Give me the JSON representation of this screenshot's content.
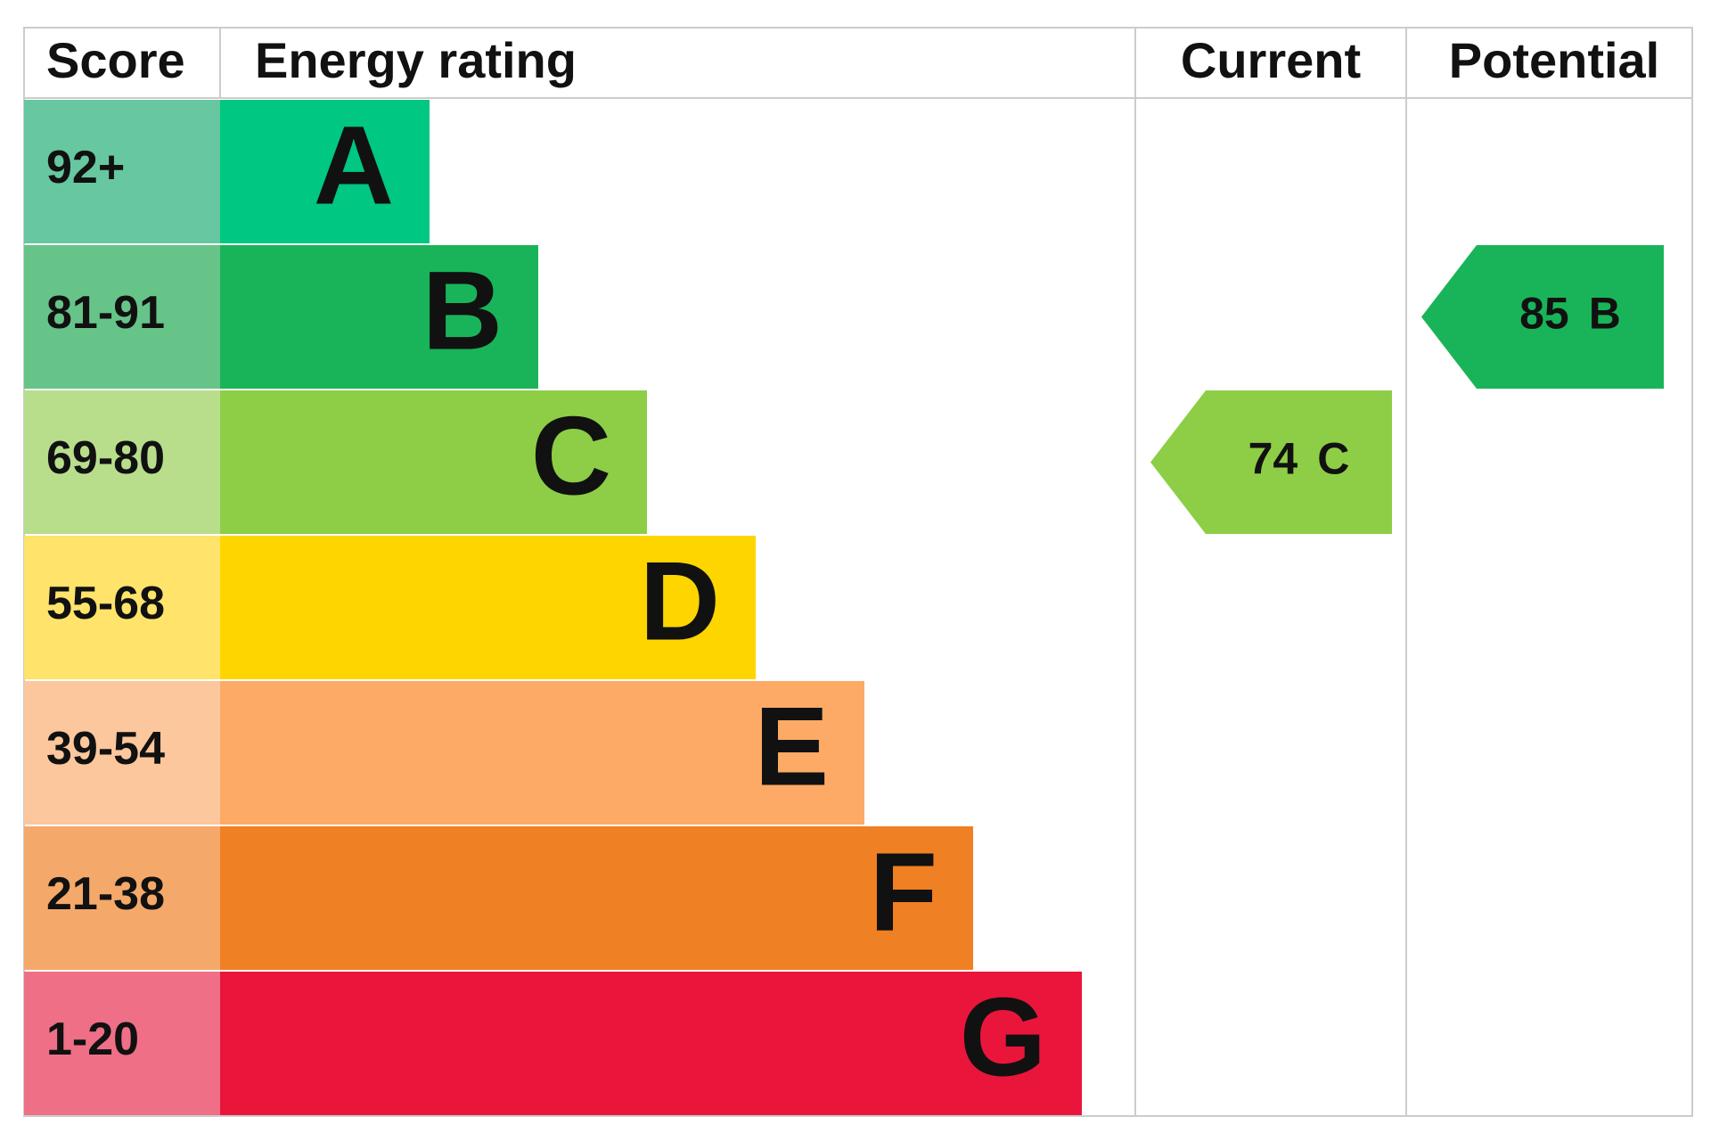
{
  "header": {
    "score": "Score",
    "rating": "Energy rating",
    "current": "Current",
    "potential": "Potential"
  },
  "bands": [
    {
      "score": "92+",
      "letter": "A",
      "color": "#00c781",
      "score_color": "#66c7a0"
    },
    {
      "score": "81-91",
      "letter": "B",
      "color": "#19b459",
      "score_color": "#66c489"
    },
    {
      "score": "69-80",
      "letter": "C",
      "color": "#8dce46",
      "score_color": "#b8de8c"
    },
    {
      "score": "55-68",
      "letter": "D",
      "color": "#ffd500",
      "score_color": "#ffe36a"
    },
    {
      "score": "39-54",
      "letter": "E",
      "color": "#fcaa65",
      "score_color": "#fcc79c"
    },
    {
      "score": "21-38",
      "letter": "F",
      "color": "#ef8023",
      "score_color": "#f4a96a"
    },
    {
      "score": "1-20",
      "letter": "G",
      "color": "#e9153b",
      "score_color": "#ef6f87"
    }
  ],
  "current": {
    "value": 74,
    "letter": "C"
  },
  "potential": {
    "value": 85,
    "letter": "B"
  }
}
